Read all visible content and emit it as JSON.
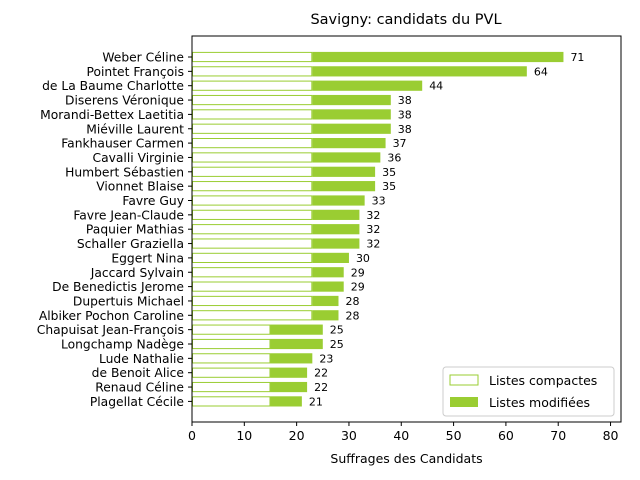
{
  "chart_data": {
    "type": "bar",
    "orientation": "horizontal",
    "stacked": true,
    "title": "Savigny: candidats du PVL",
    "xlabel": "Suffrages des Candidats",
    "ylabel": "",
    "xlim": [
      0,
      82
    ],
    "xticks": [
      0,
      10,
      20,
      30,
      40,
      50,
      60,
      70,
      80
    ],
    "grid": false,
    "legend_position": "lower-right",
    "colors": {
      "compact": "#9acd32",
      "modified": "#9acd32",
      "axis": "#000000"
    },
    "categories": [
      "Weber Céline",
      "Pointet François",
      "de La Baume Charlotte",
      "Diserens Véronique",
      "Morandi-Bettex Laetitia",
      "Miéville Laurent",
      "Fankhauser Carmen",
      "Cavalli Virginie",
      "Humbert Sébastien",
      "Vionnet Blaise",
      "Favre Guy",
      "Favre Jean-Claude",
      "Paquier Mathias",
      "Schaller Graziella",
      "Eggert Nina",
      "Jaccard Sylvain",
      "De Benedictis Jerome",
      "Dupertuis Michael",
      "Albiker Pochon Caroline",
      "Chapuisat Jean-François",
      "Longchamp Nadège",
      "Lude Nathalie",
      "de Benoit Alice",
      "Renaud Céline",
      "Plagellat Cécile"
    ],
    "series": [
      {
        "name": "Listes compactes",
        "style": "outline",
        "values": [
          23,
          23,
          23,
          23,
          23,
          23,
          23,
          23,
          23,
          23,
          23,
          23,
          23,
          23,
          23,
          23,
          23,
          23,
          23,
          15,
          15,
          15,
          15,
          15,
          15
        ]
      },
      {
        "name": "Listes modifiées",
        "style": "filled",
        "values": [
          48,
          41,
          21,
          15,
          15,
          15,
          14,
          13,
          12,
          12,
          10,
          9,
          9,
          9,
          7,
          6,
          6,
          5,
          5,
          10,
          10,
          8,
          7,
          7,
          6
        ]
      }
    ],
    "totals": [
      71,
      64,
      44,
      38,
      38,
      38,
      37,
      36,
      35,
      35,
      33,
      32,
      32,
      32,
      30,
      29,
      29,
      28,
      28,
      25,
      25,
      23,
      22,
      22,
      21
    ]
  }
}
